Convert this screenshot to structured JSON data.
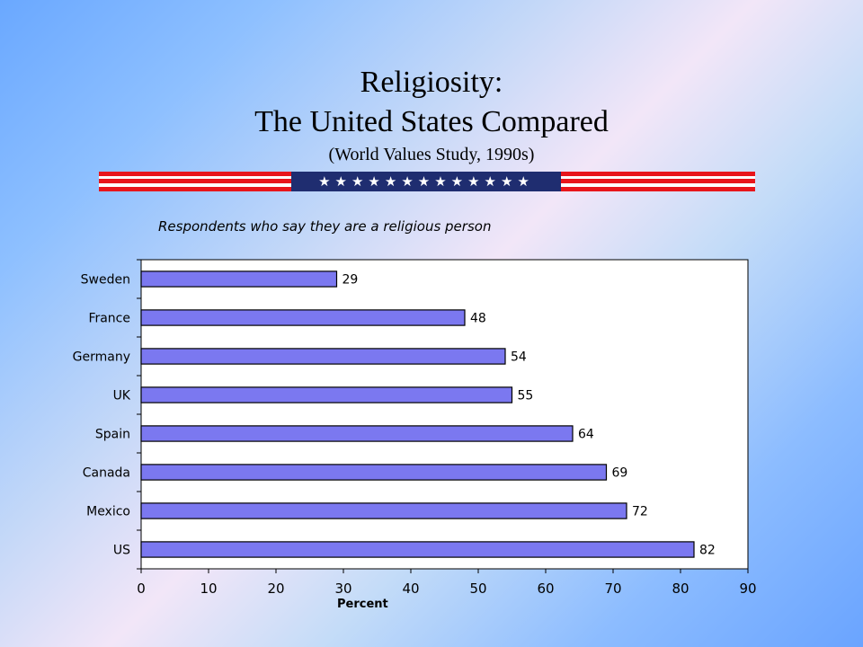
{
  "slide": {
    "title_line1": "Religiosity:",
    "title_line2": "The United States Compared",
    "title_sub": "(World Values Study, 1990s)",
    "flag_stars": "★★★★★★★★★★★★★",
    "flag_colors": {
      "red": "#e8151b",
      "blue": "#1f2d70",
      "white": "#ffffff"
    }
  },
  "chart_data": {
    "type": "bar",
    "orientation": "horizontal",
    "title": "Respondents who say they are a religious person",
    "xlabel": "Percent",
    "ylabel": "",
    "categories": [
      "Sweden",
      "France",
      "Germany",
      "UK",
      "Spain",
      "Canada",
      "Mexico",
      "US"
    ],
    "values": [
      29,
      48,
      54,
      55,
      64,
      69,
      72,
      82
    ],
    "xlim": [
      0,
      90
    ],
    "xticks": [
      0,
      10,
      20,
      30,
      40,
      50,
      60,
      70,
      80,
      90
    ],
    "grid": false,
    "data_labels": true,
    "bar_color": "#7b78f0",
    "bar_edge": "#000000",
    "plot_background": "#ffffff"
  }
}
